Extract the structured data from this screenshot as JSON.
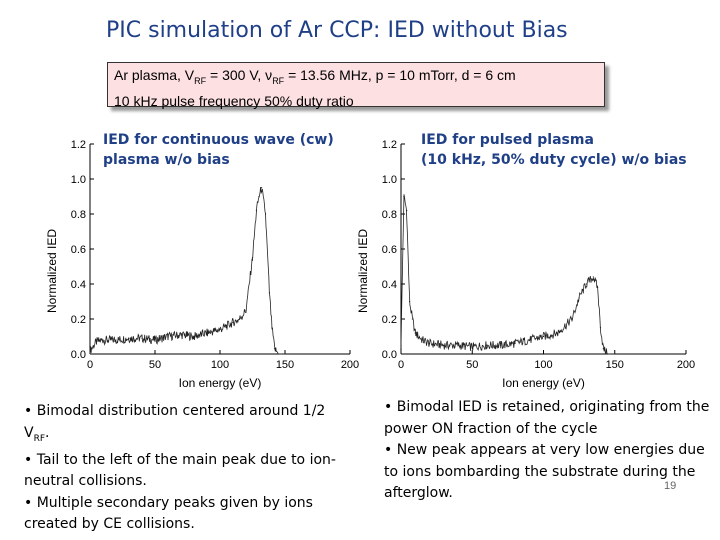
{
  "title": "PIC simulation of Ar CCP: IED without Bias",
  "params": {
    "line1_prefix": "Ar plasma, V",
    "line1_sub1": "RF",
    "line1_mid": " = 300 V, ν",
    "line1_sub2": "RF",
    "line1_suffix": " = 13.56 MHz, p = 10 mTorr, d = 6 cm",
    "line2": "10 kHz pulse frequency  50% duty ratio"
  },
  "plots": [
    {
      "caption_line1": "IED for continuous wave (cw)",
      "caption_line2": "plasma w/o bias"
    },
    {
      "caption_line1": "IED  for pulsed plasma",
      "caption_line2": "(10 kHz, 50% duty cycle) w/o bias"
    }
  ],
  "chart_data": [
    {
      "type": "line",
      "title": "IED for continuous wave (cw) plasma w/o bias",
      "xlabel": "Ion energy (eV)",
      "ylabel": "Normalized IED",
      "xlim": [
        0,
        200
      ],
      "ylim": [
        0,
        1.2
      ],
      "xticks": [
        "0",
        "50",
        "100",
        "150",
        "200"
      ],
      "yticks": [
        "0.0",
        "0.2",
        "0.4",
        "0.6",
        "0.8",
        "1.0",
        "1.2"
      ],
      "x": [
        0,
        5,
        10,
        20,
        30,
        40,
        50,
        60,
        70,
        80,
        90,
        100,
        105,
        110,
        115,
        120,
        125,
        128,
        130,
        132,
        135,
        138,
        140,
        142,
        145,
        148,
        150
      ],
      "y": [
        0.02,
        0.07,
        0.08,
        0.08,
        0.09,
        0.09,
        0.08,
        0.1,
        0.11,
        0.1,
        0.12,
        0.14,
        0.16,
        0.18,
        0.2,
        0.25,
        0.55,
        0.82,
        0.9,
        0.95,
        0.8,
        0.35,
        0.15,
        0.03,
        0.0,
        0.0,
        0.0
      ]
    },
    {
      "type": "line",
      "title": "IED for pulsed plasma (10 kHz, 50% duty cycle) w/o bias",
      "xlabel": "Ion energy (eV)",
      "ylabel": "Normalized IED",
      "xlim": [
        0,
        200
      ],
      "ylim": [
        0,
        1.2
      ],
      "xticks": [
        "0",
        "50",
        "100",
        "150",
        "200"
      ],
      "yticks": [
        "0.0",
        "0.2",
        "0.4",
        "0.6",
        "0.8",
        "1.0",
        "1.2"
      ],
      "x": [
        0,
        2,
        4,
        6,
        8,
        10,
        15,
        20,
        30,
        40,
        50,
        60,
        70,
        80,
        90,
        100,
        110,
        120,
        125,
        130,
        135,
        138,
        140,
        142,
        145,
        148,
        150
      ],
      "y": [
        0.05,
        0.9,
        0.82,
        0.3,
        0.2,
        0.12,
        0.08,
        0.06,
        0.05,
        0.05,
        0.04,
        0.05,
        0.05,
        0.06,
        0.08,
        0.1,
        0.12,
        0.2,
        0.32,
        0.4,
        0.44,
        0.38,
        0.15,
        0.03,
        0.0,
        0.0,
        0.0
      ]
    }
  ],
  "notes_left": {
    "line1_prefix": "• Bimodal distribution centered around 1/2 V",
    "line1_sub": "RF",
    "line1_suffix": ".",
    "line2": "• Tail to the left of the main peak due to ion-neutral collisions.",
    "line3": "• Multiple secondary peaks given by ions created by CE collisions."
  },
  "notes_right": {
    "line1": "• Bimodal IED is retained, originating from the power ON fraction of the cycle",
    "line2": "• New peak appears at very low energies due to ions bombarding the substrate during the afterglow."
  },
  "page_number": "19",
  "colors": {
    "title": "#1f3f87",
    "box_bg": "#fde0e2"
  }
}
